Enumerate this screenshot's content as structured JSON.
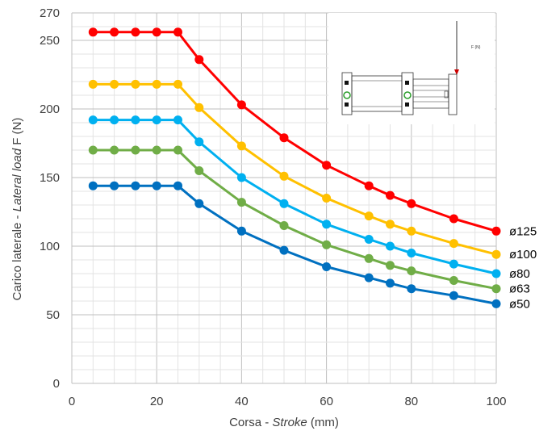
{
  "chart_data": {
    "type": "line",
    "xlabel": {
      "prefix": "Corsa - ",
      "italic": "Stroke",
      "suffix": " (mm)"
    },
    "ylabel": {
      "prefix": "Carico laterale - ",
      "italic": "Lateral load",
      "suffix": "  F (N)"
    },
    "xlim": [
      0,
      100
    ],
    "ylim": [
      0,
      270
    ],
    "xticks": [
      0,
      20,
      40,
      60,
      80,
      100
    ],
    "yticks": [
      0,
      50,
      100,
      150,
      200,
      250,
      270
    ],
    "grid": true,
    "legend": "right-end labels",
    "series": [
      {
        "name": "ø125",
        "color": "#ff0000",
        "x": [
          5,
          10,
          15,
          20,
          25,
          30,
          40,
          50,
          60,
          70,
          75,
          80,
          90,
          100
        ],
        "values": [
          256,
          256,
          256,
          256,
          256,
          236,
          203,
          179,
          159,
          144,
          137,
          131,
          120,
          111
        ]
      },
      {
        "name": "ø100",
        "color": "#ffc000",
        "x": [
          5,
          10,
          15,
          20,
          25,
          30,
          40,
          50,
          60,
          70,
          75,
          80,
          90,
          100
        ],
        "values": [
          218,
          218,
          218,
          218,
          218,
          201,
          173,
          151,
          135,
          122,
          116,
          111,
          102,
          94
        ]
      },
      {
        "name": "ø80",
        "color": "#00b0f0",
        "x": [
          5,
          10,
          15,
          20,
          25,
          30,
          40,
          50,
          60,
          70,
          75,
          80,
          90,
          100
        ],
        "values": [
          192,
          192,
          192,
          192,
          192,
          176,
          150,
          131,
          116,
          105,
          100,
          95,
          87,
          80
        ]
      },
      {
        "name": "ø63",
        "color": "#70ad47",
        "x": [
          5,
          10,
          15,
          20,
          25,
          30,
          40,
          50,
          60,
          70,
          75,
          80,
          90,
          100
        ],
        "values": [
          170,
          170,
          170,
          170,
          170,
          155,
          132,
          115,
          101,
          91,
          86,
          82,
          75,
          69
        ]
      },
      {
        "name": "ø50",
        "color": "#0070c0",
        "x": [
          5,
          10,
          15,
          20,
          25,
          30,
          40,
          50,
          60,
          70,
          75,
          80,
          90,
          100
        ],
        "values": [
          144,
          144,
          144,
          144,
          144,
          131,
          111,
          97,
          85,
          77,
          73,
          69,
          64,
          58
        ]
      }
    ]
  },
  "inset": {
    "force_label": "F (N)"
  }
}
